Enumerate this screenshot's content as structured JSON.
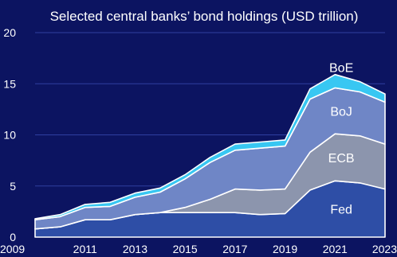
{
  "chart_data": {
    "type": "area",
    "stacked": true,
    "title": "Selected central banks’ bond holdings (USD trillion)",
    "xlabel": "",
    "ylabel": "",
    "x": [
      2009,
      2010,
      2011,
      2012,
      2013,
      2014,
      2015,
      2016,
      2017,
      2018,
      2019,
      2020,
      2021,
      2022,
      2023
    ],
    "xlim": [
      2009,
      2023
    ],
    "ylim": [
      0,
      20
    ],
    "xticks": [
      "2009",
      "2011",
      "2013",
      "2015",
      "2017",
      "2019",
      "2021",
      "2023"
    ],
    "yticks": [
      "0",
      "5",
      "10",
      "15",
      "20"
    ],
    "grid": true,
    "legend": "inline labels",
    "series": [
      {
        "name": "Fed",
        "color": "#2e4ea6",
        "values": [
          0.8,
          1.0,
          1.7,
          1.7,
          2.2,
          2.4,
          2.4,
          2.4,
          2.4,
          2.2,
          2.3,
          4.6,
          5.5,
          5.3,
          4.7
        ]
      },
      {
        "name": "ECB",
        "color": "#8c95ad",
        "values": [
          0.0,
          0.0,
          0.0,
          0.0,
          0.0,
          0.0,
          0.5,
          1.3,
          2.3,
          2.4,
          2.4,
          3.7,
          4.6,
          4.6,
          4.4
        ]
      },
      {
        "name": "BoJ",
        "color": "#6f86c6",
        "values": [
          0.9,
          1.0,
          1.2,
          1.3,
          1.7,
          2.0,
          2.8,
          3.6,
          3.8,
          4.1,
          4.2,
          5.2,
          4.5,
          4.3,
          4.1
        ]
      },
      {
        "name": "BoE",
        "color": "#38c7f2",
        "values": [
          0.1,
          0.2,
          0.3,
          0.4,
          0.4,
          0.4,
          0.4,
          0.5,
          0.6,
          0.6,
          0.6,
          1.0,
          1.3,
          1.0,
          0.8
        ]
      }
    ]
  }
}
